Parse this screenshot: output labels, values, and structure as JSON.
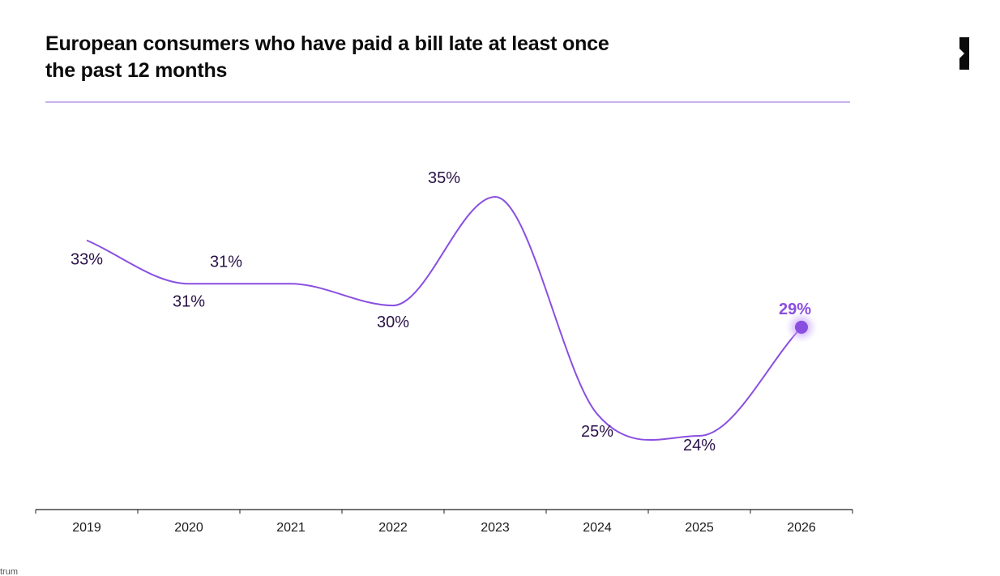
{
  "header": {
    "title": "European consumers who have paid a bill late at least once the past 12 months",
    "logo_icon": "brand-mark-icon"
  },
  "footer": {
    "source_fragment": "trum"
  },
  "colors": {
    "line": "#8a4fe0",
    "accent_dot": "#8a4fe0",
    "accent_glow": "#c9a6ff",
    "title_rule": "#c9b3ef",
    "axis": "#222222",
    "label_text": "#2a1147"
  },
  "chart_data": {
    "type": "line",
    "title": "European consumers who have paid a bill late at least once the past 12 months",
    "xlabel": "",
    "ylabel": "",
    "grid": false,
    "legend": "none",
    "categories": [
      "2019",
      "2020",
      "2021",
      "2022",
      "2023",
      "2024",
      "2025",
      "2026"
    ],
    "series": [
      {
        "values": [
          33,
          31,
          31,
          30,
          35,
          25,
          24,
          29
        ],
        "labels": [
          "33%",
          "31%",
          "31%",
          "30%",
          "35%",
          "25%",
          "24%",
          "29%"
        ]
      }
    ],
    "highlight_index": 7,
    "ylim": [
      20,
      38
    ]
  }
}
